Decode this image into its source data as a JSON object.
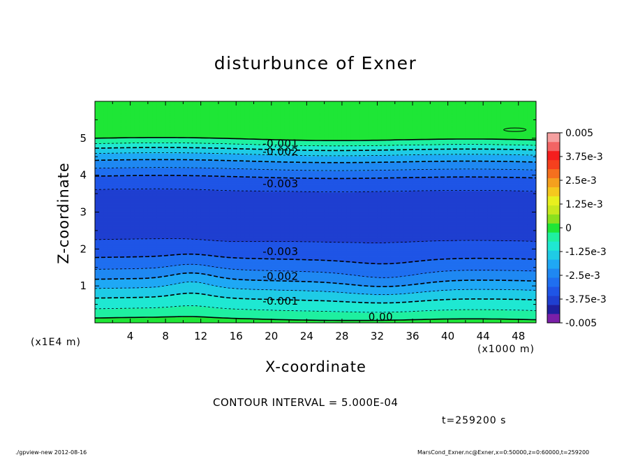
{
  "figure": {
    "title": "disturbunce of Exner",
    "contour_interval": "CONTOUR INTERVAL = 5.000E-04",
    "time_label": "t=259200 s",
    "footer_left": "./gpview-new  2012-08-16",
    "footer_right": "MarsCond_Exner.nc@Exner,x=0:50000,z=0:60000,t=259200"
  },
  "chart_data": {
    "type": "heatmap",
    "title": "disturbunce of Exner",
    "xlabel": "X-coordinate",
    "ylabel": "Z-coordinate",
    "x_unit": "(x1000 m)",
    "y_unit": "(x1E4 m)",
    "xlim": [
      0,
      50
    ],
    "ylim": [
      0,
      6
    ],
    "x_ticks": [
      4,
      8,
      12,
      16,
      20,
      24,
      28,
      32,
      36,
      40,
      44,
      48
    ],
    "y_ticks": [
      1,
      2,
      3,
      4,
      5
    ],
    "colorbar": {
      "range": [
        -0.005,
        0.005
      ],
      "tick_labels": [
        "0.005",
        "3.75e-3",
        "2.5e-3",
        "1.25e-3",
        "0",
        "-1.25e-3",
        "-2.5e-3",
        "-3.75e-3",
        "-0.005"
      ],
      "levels": [
        -0.005,
        -0.0045,
        -0.004,
        -0.0035,
        -0.003,
        -0.0025,
        -0.002,
        -0.0015,
        -0.001,
        -0.0005,
        0,
        0.0005,
        0.001,
        0.0015,
        0.002,
        0.0025,
        0.003,
        0.0035,
        0.004,
        0.0045,
        0.005
      ],
      "colors": [
        "#7a1fa8",
        "#1f1f9e",
        "#1f3fd0",
        "#1f55e6",
        "#1f6ff0",
        "#1f88f2",
        "#1fa8f5",
        "#1fcbe6",
        "#1fe8d2",
        "#1ff0a0",
        "#1ee636",
        "#8ae01e",
        "#c8e81e",
        "#e8f01e",
        "#f5c81e",
        "#f5a01e",
        "#f5701e",
        "#f5401e",
        "#f51e1e",
        "#f26464",
        "#f5a0a0"
      ]
    },
    "profile": {
      "description_z": [
        0.0,
        0.15,
        0.4,
        0.7,
        1.0,
        1.3,
        1.6,
        1.95,
        2.5,
        3.0,
        3.5,
        3.9,
        4.2,
        4.5,
        4.7,
        4.85,
        5.0,
        6.0
      ],
      "value": [
        0.0002,
        -0.0001,
        -0.0006,
        -0.0011,
        -0.0017,
        -0.0023,
        -0.0028,
        -0.0033,
        -0.0037,
        -0.0039,
        -0.0036,
        -0.0031,
        -0.0024,
        -0.0017,
        -0.001,
        -0.0004,
        0.0001,
        0.0001
      ]
    },
    "contour_labels": [
      {
        "text": "0.00",
        "x": 31,
        "z": 0.15
      },
      {
        "text": "-0.001",
        "x": 19,
        "z": 0.58
      },
      {
        "text": "-0.002",
        "x": 19,
        "z": 1.25
      },
      {
        "text": "-0.003",
        "x": 19,
        "z": 1.92
      },
      {
        "text": "-0.003",
        "x": 19,
        "z": 3.76
      },
      {
        "text": "-0.002",
        "x": 19,
        "z": 4.63
      },
      {
        "text": "-0.001",
        "x": 19,
        "z": 4.85
      }
    ]
  }
}
